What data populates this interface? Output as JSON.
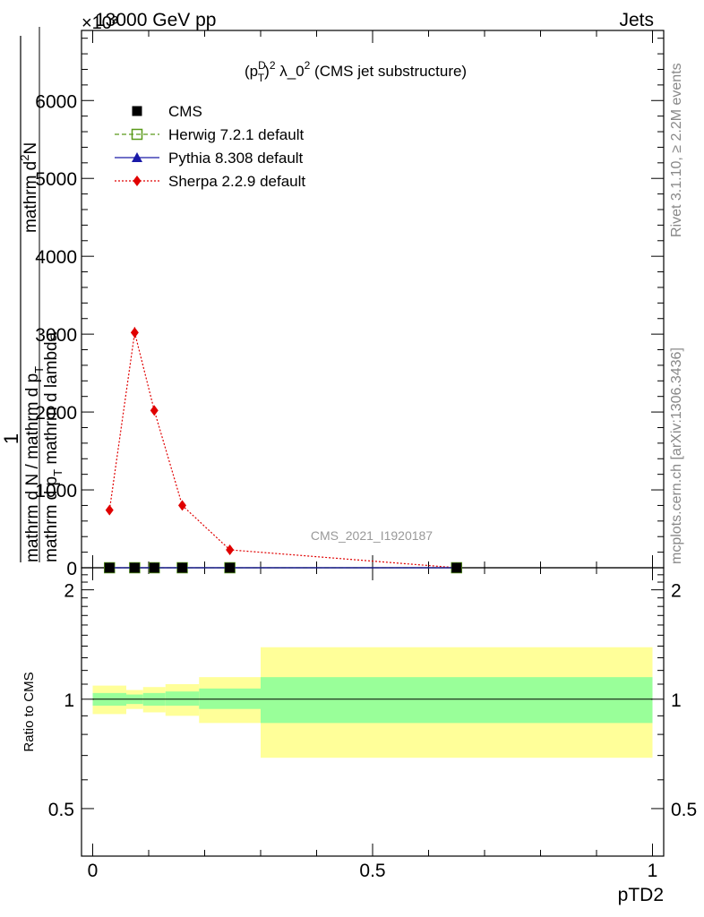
{
  "header": {
    "left": "13000 GeV pp",
    "right": "Jets",
    "exponent": "×10³"
  },
  "side": {
    "rivet": "Rivet 3.1.10, ≥ 2.2M events",
    "mcplots": "mcplots.cern.ch [arXiv:1306.3436]"
  },
  "watermark": "CMS_2021_I1920187",
  "chart_data": [
    {
      "type": "line",
      "title": "(p_T^D)^2 λ_0^2 (CMS jet substructure)",
      "title_parts": {
        "p": "(p",
        "sup1": "D",
        "sub1": "T",
        "close": ")",
        "sup2": "2",
        "rest": " λ_0",
        "sup3": "2",
        "tail": " (CMS jet substructure)"
      },
      "xlabel": "pTD2",
      "ylabel": "1 / (mathrm d N / mathrm d p_T) · mathrm d²N / (mathrm d p_T mathrm d lambda)",
      "ylabel_parts": {
        "num": "1",
        "den": "mathrm d N / mathrm d p",
        "den_sub": "T",
        "num2": "mathrm d",
        "num2_sup": "2",
        "num2_tail": "N",
        "den2": "mathrm d p",
        "den2_sub": "T",
        "den2_tail": " mathrm d lambda"
      },
      "y_scale_exponent": 3,
      "xlim": [
        -0.02,
        1.02
      ],
      "ylim": [
        0,
        6900
      ],
      "yticks": [
        0,
        1000,
        2000,
        3000,
        4000,
        5000,
        6000
      ],
      "ytick_labels": [
        "0",
        "1000",
        "2000",
        "3000",
        "4000",
        "5000",
        "6000"
      ],
      "legend_position": "top-left",
      "series": [
        {
          "name": "CMS",
          "marker": "square",
          "color": "#000000",
          "x": [
            0.03,
            0.075,
            0.11,
            0.16,
            0.245,
            0.65
          ],
          "y": [
            0,
            0,
            0,
            0,
            0,
            0
          ]
        },
        {
          "name": "Herwig 7.2.1 default",
          "marker": "open-square",
          "line": "dashed",
          "color": "#5a9a1a",
          "x": [
            0.03,
            0.075,
            0.11,
            0.16,
            0.245,
            0.65
          ],
          "y": [
            0,
            0,
            0,
            0,
            0,
            0
          ]
        },
        {
          "name": "Pythia 8.308 default",
          "marker": "triangle",
          "line": "solid",
          "color": "#1a1aa8",
          "x": [
            0.03,
            0.075,
            0.11,
            0.16,
            0.245,
            0.65
          ],
          "y": [
            0,
            0,
            0,
            0,
            0,
            0
          ]
        },
        {
          "name": "Sherpa 2.2.9 default",
          "marker": "diamond",
          "line": "dotted",
          "color": "#e00000",
          "x": [
            0.03,
            0.075,
            0.11,
            0.16,
            0.245,
            0.65
          ],
          "y": [
            740,
            3020,
            2020,
            800,
            230,
            0
          ],
          "yerr": [
            30,
            70,
            50,
            30,
            15,
            0
          ]
        }
      ]
    },
    {
      "type": "area",
      "title": "",
      "xlabel": "pTD2",
      "ylabel": "Ratio to CMS",
      "xlim": [
        -0.02,
        1.02
      ],
      "ylim": [
        0.37,
        2.3
      ],
      "yticks": [
        0.5,
        1,
        2
      ],
      "ytick_labels": [
        "0.5",
        "1",
        "2"
      ],
      "xticks": [
        0,
        0.5,
        1
      ],
      "xtick_labels": [
        "0",
        "0.5",
        "1"
      ],
      "bands": {
        "edges": [
          0,
          0.06,
          0.09,
          0.13,
          0.19,
          0.3,
          1.0
        ],
        "stat_lo": [
          0.96,
          0.97,
          0.96,
          0.96,
          0.94,
          0.86
        ],
        "stat_hi": [
          1.04,
          1.03,
          1.04,
          1.05,
          1.07,
          1.15
        ],
        "total_lo": [
          0.91,
          0.94,
          0.92,
          0.9,
          0.86,
          0.69
        ],
        "total_hi": [
          1.09,
          1.06,
          1.08,
          1.1,
          1.15,
          1.39
        ],
        "stat_color": "#99ff99",
        "total_color": "#ffff99"
      },
      "reference": 1
    }
  ]
}
